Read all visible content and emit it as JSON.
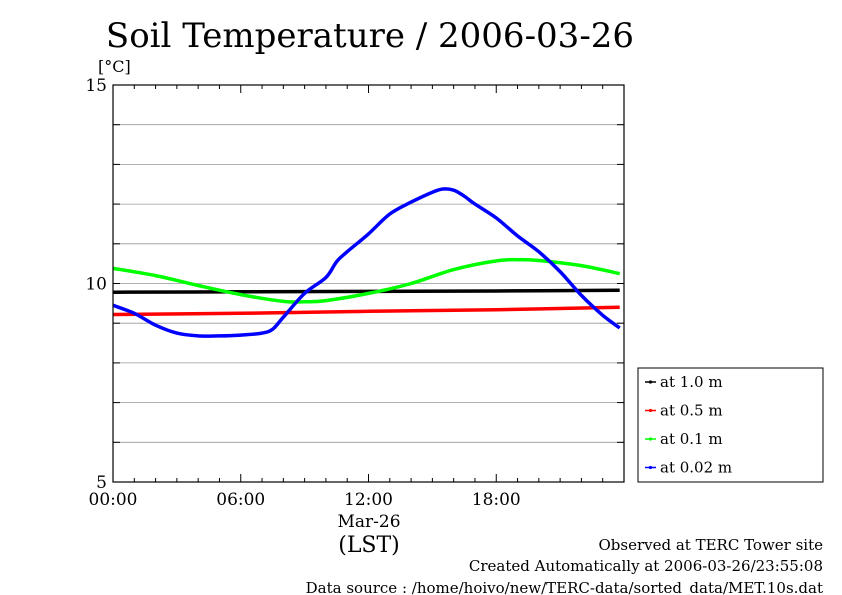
{
  "chart_data": {
    "type": "line",
    "title": "Soil Temperature / 2006-03-26",
    "ylabel": "[°C]",
    "xlabel": "(LST)",
    "date_label": "Mar-26",
    "ylim": [
      5,
      15
    ],
    "xlim": [
      0,
      24
    ],
    "yticks": [
      "5",
      "10",
      "15"
    ],
    "xticks": [
      {
        "hour": 0,
        "label": "00:00"
      },
      {
        "hour": 6,
        "label": "06:00"
      },
      {
        "hour": 12,
        "label": "12:00"
      },
      {
        "hour": 18,
        "label": "18:00"
      }
    ],
    "grid": true,
    "legend_position": "right",
    "series": [
      {
        "name": "at 1.0 m",
        "color": "#000000",
        "points": [
          [
            0,
            9.78
          ],
          [
            6,
            9.79
          ],
          [
            12,
            9.8
          ],
          [
            18,
            9.81
          ],
          [
            23.8,
            9.83
          ]
        ]
      },
      {
        "name": "at 0.5 m",
        "color": "#ff0000",
        "points": [
          [
            0,
            9.22
          ],
          [
            6,
            9.25
          ],
          [
            12,
            9.3
          ],
          [
            18,
            9.34
          ],
          [
            23.8,
            9.4
          ]
        ]
      },
      {
        "name": "at 0.1 m",
        "color": "#00ff00",
        "points": [
          [
            0,
            10.38
          ],
          [
            2,
            10.2
          ],
          [
            4,
            9.95
          ],
          [
            6,
            9.72
          ],
          [
            8,
            9.55
          ],
          [
            9,
            9.54
          ],
          [
            10,
            9.57
          ],
          [
            12,
            9.75
          ],
          [
            14,
            10.0
          ],
          [
            16,
            10.35
          ],
          [
            18,
            10.57
          ],
          [
            19,
            10.6
          ],
          [
            20,
            10.58
          ],
          [
            22,
            10.45
          ],
          [
            23.8,
            10.25
          ]
        ]
      },
      {
        "name": "at 0.02 m",
        "color": "#0000ff",
        "points": [
          [
            0,
            9.45
          ],
          [
            1,
            9.25
          ],
          [
            2,
            8.95
          ],
          [
            3,
            8.75
          ],
          [
            4,
            8.68
          ],
          [
            5,
            8.68
          ],
          [
            6,
            8.7
          ],
          [
            7,
            8.75
          ],
          [
            7.5,
            8.85
          ],
          [
            8,
            9.15
          ],
          [
            9,
            9.75
          ],
          [
            10,
            10.15
          ],
          [
            10.5,
            10.55
          ],
          [
            11,
            10.8
          ],
          [
            12,
            11.25
          ],
          [
            13,
            11.75
          ],
          [
            14,
            12.05
          ],
          [
            15,
            12.3
          ],
          [
            15.5,
            12.38
          ],
          [
            16,
            12.35
          ],
          [
            16.5,
            12.2
          ],
          [
            17,
            12.0
          ],
          [
            18,
            11.65
          ],
          [
            19,
            11.2
          ],
          [
            20,
            10.8
          ],
          [
            21,
            10.3
          ],
          [
            22,
            9.7
          ],
          [
            23,
            9.2
          ],
          [
            23.8,
            8.88
          ]
        ]
      }
    ]
  },
  "footer": {
    "observed": "Observed at TERC Tower site",
    "created": "Created Automatically at 2006-03-26/23:55:08",
    "source": "Data source : /home/hoivo/new/TERC-data/sorted_data/MET.10s.dat"
  }
}
